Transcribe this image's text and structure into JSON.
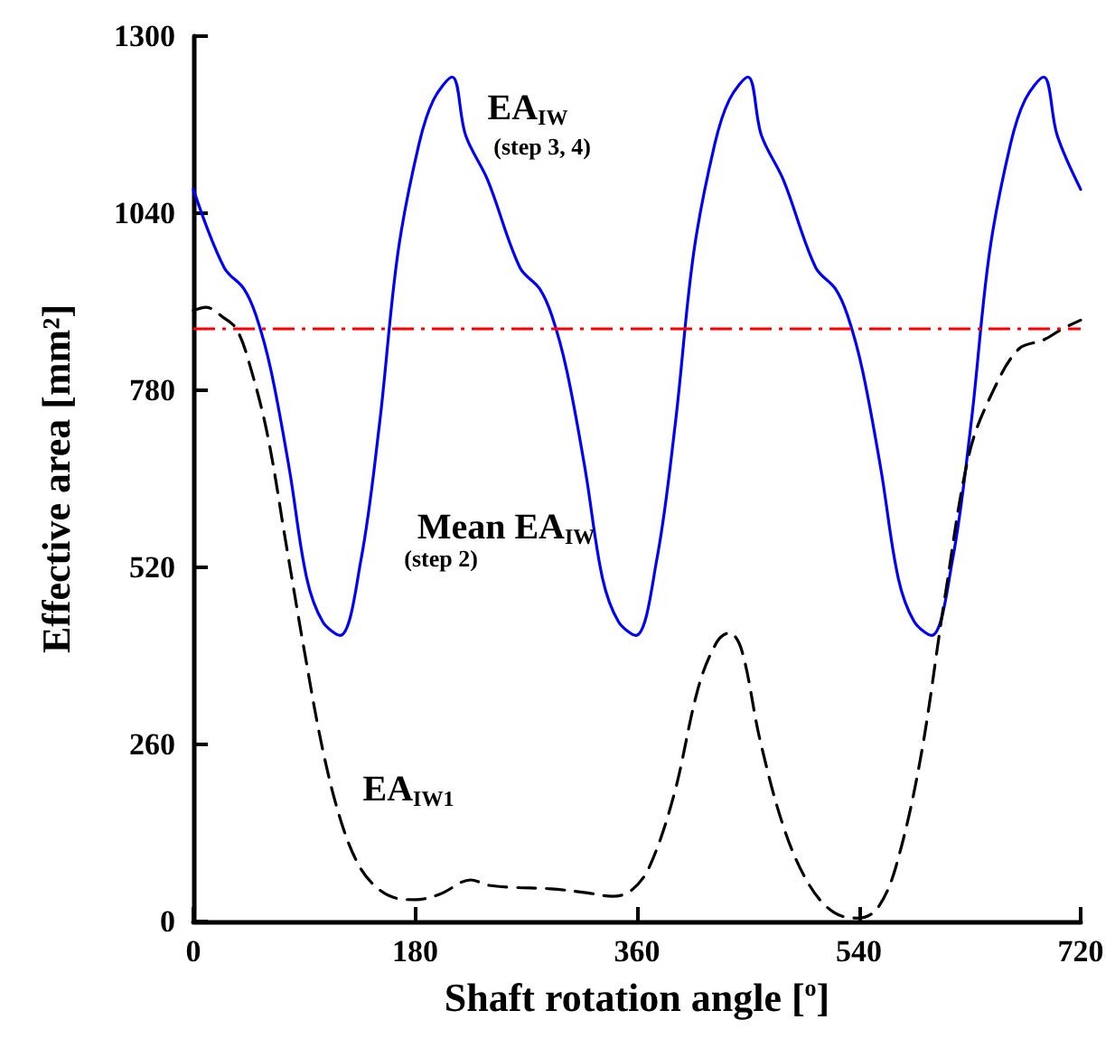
{
  "chart_data": {
    "type": "line",
    "xlabel": "Shaft rotation angle [$^{o}$]",
    "ylabel": "Effective area [mm²]",
    "xlim": [
      0,
      720
    ],
    "xticks": [
      0,
      180,
      360,
      540,
      720
    ],
    "ylim": [
      0,
      1300
    ],
    "yticks": [
      0,
      260,
      520,
      780,
      1040,
      1300
    ],
    "grid": false,
    "legend": false,
    "marker": "none",
    "series": [
      {
        "color": "#0000ff",
        "line_style": "solid",
        "x": [
          0,
          25,
          41,
          51,
          63,
          78,
          92,
          105,
          119,
          136,
          151,
          166,
          183,
          195,
          210,
          221,
          239,
          265,
          281,
          291,
          303,
          318,
          332,
          345,
          359,
          376,
          391,
          406,
          423,
          435,
          450,
          461,
          479,
          505,
          521,
          531,
          543,
          558,
          572,
          585,
          599,
          616,
          631,
          646,
          663,
          675,
          690,
          701,
          720
        ],
        "values": [
          1075,
          960,
          929,
          889,
          809,
          663,
          504,
          440,
          420,
          531,
          730,
          982,
          1141,
          1207,
          1240,
          1154,
          1088,
          960,
          929,
          889,
          809,
          663,
          504,
          440,
          420,
          531,
          730,
          982,
          1141,
          1207,
          1240,
          1154,
          1088,
          960,
          929,
          889,
          809,
          663,
          504,
          440,
          420,
          531,
          730,
          982,
          1141,
          1207,
          1240,
          1154,
          1075
        ]
      },
      {
        "color": "#000000",
        "line_style": "dashed",
        "x": [
          0,
          10,
          25,
          35,
          45,
          60,
          75,
          90,
          105,
          120,
          135,
          150,
          165,
          180,
          200,
          225,
          240,
          260,
          290,
          320,
          340,
          355,
          370,
          390,
          410,
          425,
          435,
          445,
          460,
          480,
          500,
          520,
          540,
          555,
          570,
          590,
          610,
          630,
          650,
          670,
          690,
          705,
          720
        ],
        "values": [
          897,
          902,
          886,
          870,
          822,
          716,
          557,
          398,
          252,
          146,
          80,
          48,
          34,
          32,
          40,
          61,
          53,
          50,
          48,
          42,
          37,
          45,
          80,
          186,
          345,
          411,
          424,
          398,
          265,
          133,
          53,
          13,
          5,
          19,
          80,
          239,
          478,
          690,
          783,
          841,
          854,
          870,
          883
        ]
      }
    ],
    "ref_lines": [
      {
        "axis": "y",
        "value": 870,
        "color": "#ff0000",
        "line_style": "dashdot"
      }
    ],
    "annotations": [
      "EA$_{IW}$",
      "(step 3, 4)",
      "Mean EA$_{IW}$",
      "(step 2)",
      "EA$_{IW1}$"
    ]
  }
}
